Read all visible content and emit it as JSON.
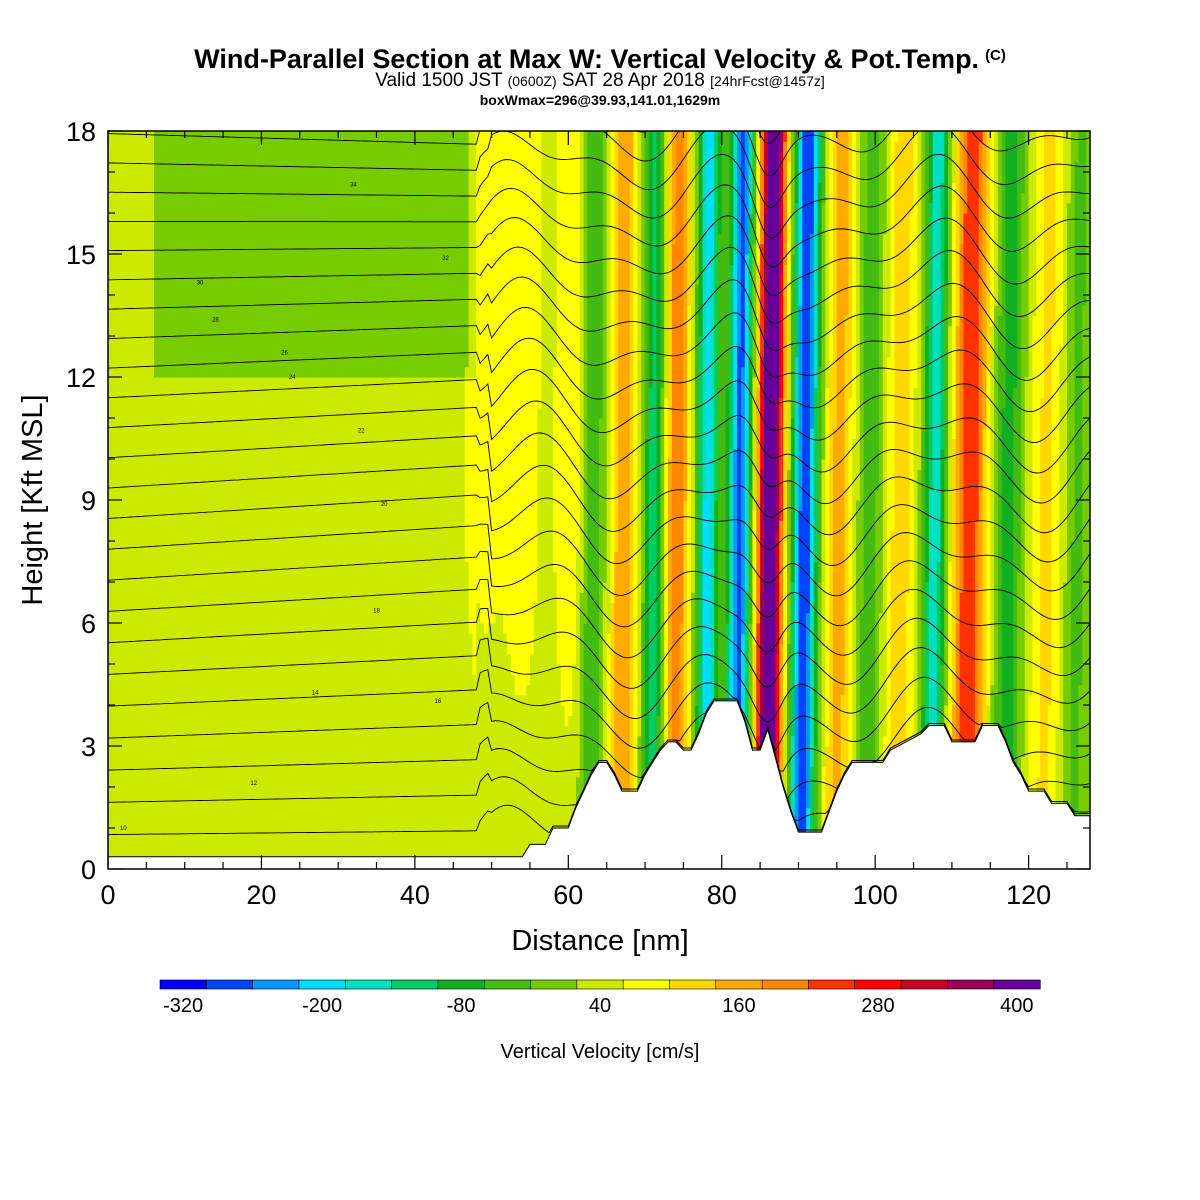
{
  "header": {
    "title": "Wind-Parallel Section at Max W: Vertical Velocity & Pot.Temp.",
    "title_mark": "(C)",
    "valid_a": "Valid 1500 JST",
    "valid_zulu": "(0600Z)",
    "valid_b": "SAT 28 Apr 2018",
    "forecast": "[24hrFcst@1457z]",
    "box_info": "boxWmax=296@39.93,141.01,1629m"
  },
  "chart_data": {
    "type": "heatmap",
    "xlabel": "Distance [nm]",
    "ylabel": "Height [Kft MSL]",
    "xlim": [
      0,
      128
    ],
    "ylim": [
      0,
      18
    ],
    "xticks": [
      0,
      20,
      40,
      60,
      80,
      100,
      120
    ],
    "yticks": [
      0,
      3,
      6,
      9,
      12,
      15,
      18
    ],
    "colorbar": {
      "label": "Vertical Velocity [cm/s]",
      "ticks": [
        "-320",
        "-200",
        "-80",
        "40",
        "160",
        "280",
        "400"
      ],
      "colors": [
        "#0000ff",
        "#0044ff",
        "#0099ff",
        "#00ddff",
        "#00e0c0",
        "#00cc66",
        "#11b022",
        "#44bb11",
        "#77cc00",
        "#ccea00",
        "#ffff00",
        "#ffd800",
        "#ffaa00",
        "#ff8800",
        "#ff3300",
        "#ff0000",
        "#cc0022",
        "#990055",
        "#660099"
      ]
    },
    "terrain_kft": [
      [
        0,
        0.3
      ],
      [
        54,
        0.3
      ],
      [
        55,
        0.6
      ],
      [
        57,
        0.6
      ],
      [
        58,
        1.0
      ],
      [
        60,
        1.0
      ],
      [
        61,
        1.5
      ],
      [
        62,
        1.9
      ],
      [
        63,
        2.3
      ],
      [
        64,
        2.6
      ],
      [
        65,
        2.6
      ],
      [
        66,
        2.3
      ],
      [
        67,
        1.9
      ],
      [
        69,
        1.9
      ],
      [
        70,
        2.3
      ],
      [
        71,
        2.6
      ],
      [
        72,
        2.9
      ],
      [
        73,
        3.1
      ],
      [
        74,
        3.1
      ],
      [
        75,
        2.9
      ],
      [
        76,
        2.9
      ],
      [
        77,
        3.3
      ],
      [
        78,
        3.8
      ],
      [
        79,
        4.1
      ],
      [
        82,
        4.1
      ],
      [
        83,
        3.6
      ],
      [
        84,
        2.9
      ],
      [
        85,
        2.9
      ],
      [
        86,
        3.4
      ],
      [
        87,
        2.7
      ],
      [
        88,
        2.0
      ],
      [
        89,
        1.4
      ],
      [
        90,
        0.9
      ],
      [
        93,
        0.9
      ],
      [
        94,
        1.4
      ],
      [
        95,
        1.9
      ],
      [
        96,
        2.3
      ],
      [
        97,
        2.6
      ],
      [
        101,
        2.6
      ],
      [
        102,
        2.9
      ],
      [
        104,
        3.1
      ],
      [
        106,
        3.3
      ],
      [
        107,
        3.5
      ],
      [
        109,
        3.5
      ],
      [
        110,
        3.1
      ],
      [
        113,
        3.1
      ],
      [
        114,
        3.5
      ],
      [
        116,
        3.5
      ],
      [
        117,
        3.1
      ],
      [
        118,
        2.6
      ],
      [
        119,
        2.3
      ],
      [
        120,
        1.9
      ],
      [
        122,
        1.9
      ],
      [
        123,
        1.6
      ],
      [
        125,
        1.6
      ],
      [
        126,
        1.3
      ],
      [
        127,
        1.3
      ],
      [
        128,
        1.3
      ]
    ],
    "w_features": [
      {
        "x": 49,
        "amp": 40,
        "width": 3.0
      },
      {
        "x": 54,
        "amp": 55,
        "width": 2.5
      },
      {
        "x": 60,
        "amp": 70,
        "width": 2.0
      },
      {
        "x": 63,
        "amp": -90,
        "width": 1.5
      },
      {
        "x": 67,
        "amp": 150,
        "width": 1.6
      },
      {
        "x": 71,
        "amp": -150,
        "width": 1.4
      },
      {
        "x": 74,
        "amp": 180,
        "width": 1.6
      },
      {
        "x": 78,
        "amp": -230,
        "width": 1.4
      },
      {
        "x": 82,
        "amp": -300,
        "width": 1.5
      },
      {
        "x": 86,
        "amp": 450,
        "width": 1.6
      },
      {
        "x": 90.5,
        "amp": -330,
        "width": 1.6
      },
      {
        "x": 95,
        "amp": 130,
        "width": 1.7
      },
      {
        "x": 99,
        "amp": -80,
        "width": 1.5
      },
      {
        "x": 103,
        "amp": 100,
        "width": 1.8
      },
      {
        "x": 107.5,
        "amp": -200,
        "width": 1.5
      },
      {
        "x": 112,
        "amp": 230,
        "width": 2.2
      },
      {
        "x": 117,
        "amp": -110,
        "width": 1.8
      },
      {
        "x": 122,
        "amp": 80,
        "width": 2.0
      },
      {
        "x": 126,
        "amp": -60,
        "width": 1.6
      }
    ],
    "isentrope_labels": [
      "10",
      "12",
      "14",
      "16",
      "18",
      "20",
      "22",
      "24",
      "26",
      "28",
      "30",
      "32",
      "34"
    ]
  }
}
